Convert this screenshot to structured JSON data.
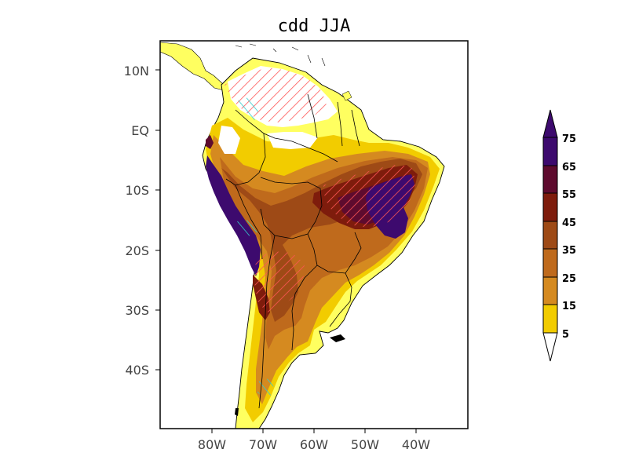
{
  "title": "cdd JJA",
  "map": {
    "lat_labels": [
      "10N",
      "EQ",
      "10S",
      "20S",
      "30S",
      "40S"
    ],
    "lon_labels": [
      "80W",
      "70W",
      "60W",
      "50W",
      "40W"
    ]
  },
  "colorbar": {
    "labels": [
      "75",
      "65",
      "55",
      "45",
      "35",
      "25",
      "15",
      "5"
    ],
    "colors": [
      "#3d0a6e",
      "#5e0b2e",
      "#7e1c0c",
      "#9e4a16",
      "#bf6a1c",
      "#d58a20",
      "#f2cc00",
      "#ffff60"
    ],
    "under_color": "#ffffff",
    "over_color": "#3d0a6e"
  },
  "palette": {
    "land_low": "#ffff60",
    "land_mid": "#f2cc00",
    "hatch_red": "#ff5555",
    "hatch_cyan": "#33cccc",
    "borders": "#000000"
  }
}
